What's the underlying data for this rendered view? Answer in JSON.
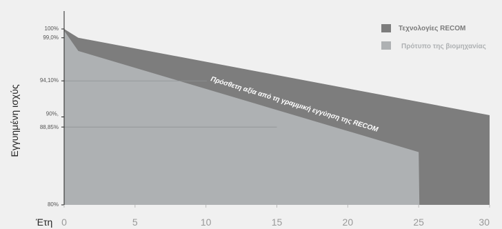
{
  "chart_data": {
    "type": "area",
    "xlabel": "Έτη",
    "ylabel": "Εγγυημένη ισχύς",
    "xlim": [
      0,
      30
    ],
    "ylim": [
      80,
      100
    ],
    "xticks": [
      0,
      5,
      10,
      15,
      20,
      25,
      30
    ],
    "yticks": [
      {
        "value": 100,
        "label": "100%"
      },
      {
        "value": 99.0,
        "label": "99,0%"
      },
      {
        "value": 94.1,
        "label": "94,10%"
      },
      {
        "value": 90.0,
        "label": "90%,"
      },
      {
        "value": 88.85,
        "label": "88,85%"
      },
      {
        "value": 80,
        "label": "80%"
      }
    ],
    "reference_lines": [
      94.1,
      88.85
    ],
    "series": [
      {
        "name": "Τεχνολογίες RECOM",
        "color": "#7d7d7d",
        "x": [
          0,
          1,
          30
        ],
        "y": [
          100,
          99.0,
          90.2
        ]
      },
      {
        "name": "Πρότυπο της βιομηχανίας",
        "color": "#aeb1b3",
        "x": [
          0,
          1,
          25,
          25.05
        ],
        "y": [
          99.8,
          97.5,
          86.0,
          80
        ]
      }
    ],
    "legend_position": "top-right",
    "annotation": "Πρόσθετη αξία από τη γραμμική εγγύηση της RECOM"
  }
}
